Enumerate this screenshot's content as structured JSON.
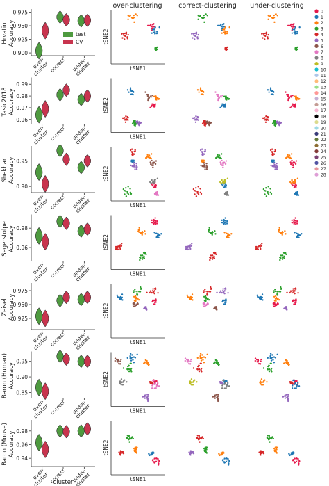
{
  "chart_data": {
    "type": "violin",
    "column_titles": [
      "over-clustering",
      "correct-clustering",
      "under-clustering"
    ],
    "categories": [
      "over-\ncluster",
      "correct",
      "under-\ncluster"
    ],
    "xlabel": "cluster",
    "ylabel": "Accuracy",
    "tsne_xlabel": "tSNE1",
    "tsne_ylabel": "tSNE2",
    "legend": {
      "entries": [
        {
          "name": "test",
          "color": "#4e9a3f"
        },
        {
          "name": "CV",
          "color": "#c8344e"
        }
      ],
      "placement": "inside-top-right (first panel)"
    },
    "cluster_legend": {
      "labels": [
        "0",
        "1",
        "2",
        "3",
        "4",
        "5",
        "6",
        "7",
        "8",
        "9",
        "10",
        "11",
        "12",
        "13",
        "14",
        "15",
        "16",
        "17",
        "18",
        "19",
        "20",
        "21",
        "22",
        "23",
        "24",
        "25",
        "26",
        "27",
        "28"
      ],
      "colors": [
        "#e6194b",
        "#1f77b4",
        "#ff7f0e",
        "#2ca02c",
        "#d62728",
        "#9467bd",
        "#8c564b",
        "#e377c2",
        "#7f7f7f",
        "#bcbd22",
        "#17becf",
        "#aec7e8",
        "#ffbb78",
        "#98df8a",
        "#ff9896",
        "#c5b0d5",
        "#c49c94",
        "#f7b6d2",
        "#000000",
        "#dbdb8d",
        "#9edae5",
        "#393b79",
        "#637939",
        "#8c6d31",
        "#843c39",
        "#7b4173",
        "#5254a3",
        "#e7969c",
        "#de9ed6"
      ]
    },
    "panels": [
      {
        "dataset": "Hrvatin",
        "ylim": [
          0.895,
          0.977
        ],
        "yticks": [
          "0.900",
          "0.925",
          "0.950",
          "0.975"
        ],
        "test": [
          0.904,
          0.966,
          0.959
        ],
        "cv": [
          0.941,
          0.961,
          0.96
        ]
      },
      {
        "dataset": "Tasic2018",
        "ylim": [
          0.956,
          0.994
        ],
        "yticks": [
          "0.96",
          "0.97",
          "0.98",
          "0.99"
        ],
        "test": [
          0.964,
          0.981,
          0.977
        ],
        "cv": [
          0.969,
          0.985,
          0.98
        ]
      },
      {
        "dataset": "Shekhar",
        "ylim": [
          0.888,
          0.975
        ],
        "yticks": [
          "0.90",
          "0.95"
        ],
        "test": [
          0.928,
          0.97,
          0.937
        ],
        "cv": [
          0.905,
          0.953,
          0.95
        ]
      },
      {
        "dataset": "Segerstolpe",
        "ylim": [
          0.946,
          0.992
        ],
        "yticks": [
          "0.96",
          "0.98"
        ],
        "test": [
          0.972,
          0.987,
          0.977
        ],
        "cv": [
          0.966,
          0.985,
          0.979
        ]
      },
      {
        "dataset": "Zeisel",
        "ylim": [
          0.905,
          0.985
        ],
        "yticks": [
          "0.925",
          "0.950",
          "0.975"
        ],
        "test": [
          0.929,
          0.957,
          0.959
        ],
        "cv": [
          0.925,
          0.963,
          0.963
        ]
      },
      {
        "dataset": "Baron (Human)",
        "ylim": [
          0.832,
          0.975
        ],
        "yticks": [
          "0.85",
          "0.90",
          "0.95"
        ],
        "test": [
          0.866,
          0.966,
          0.95
        ],
        "cv": [
          0.854,
          0.957,
          0.95
        ]
      },
      {
        "dataset": "Baron (Mouse)",
        "ylim": [
          0.928,
          0.993
        ],
        "yticks": [
          "0.94",
          "0.96",
          "0.98"
        ],
        "test": [
          0.963,
          0.98,
          0.98
        ],
        "cv": [
          0.953,
          0.979,
          0.983
        ]
      }
    ]
  }
}
